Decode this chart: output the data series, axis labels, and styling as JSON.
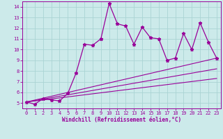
{
  "xlabel": "Windchill (Refroidissement éolien,°C)",
  "bg_color": "#cceaea",
  "grid_color": "#aad4d4",
  "line_color": "#990099",
  "xlim": [
    -0.5,
    23.5
  ],
  "ylim": [
    4.5,
    14.5
  ],
  "xticks": [
    0,
    1,
    2,
    3,
    4,
    5,
    6,
    7,
    8,
    9,
    10,
    11,
    12,
    13,
    14,
    15,
    16,
    17,
    18,
    19,
    20,
    21,
    22,
    23
  ],
  "yticks": [
    5,
    6,
    7,
    8,
    9,
    10,
    11,
    12,
    13,
    14
  ],
  "line1_x": [
    0,
    1,
    2,
    3,
    4,
    5,
    6,
    7,
    8,
    9,
    10,
    11,
    12,
    13,
    14,
    15,
    16,
    17,
    18,
    19,
    20,
    21,
    22,
    23
  ],
  "line1_y": [
    5.1,
    4.9,
    5.4,
    5.3,
    5.2,
    5.9,
    7.8,
    10.5,
    10.4,
    11.0,
    14.3,
    12.4,
    12.2,
    10.5,
    12.1,
    11.1,
    11.0,
    9.0,
    9.2,
    11.5,
    10.0,
    12.5,
    10.7,
    9.2
  ],
  "line2_x": [
    0,
    23
  ],
  "line2_y": [
    5.1,
    9.2
  ],
  "line3_x": [
    0,
    23
  ],
  "line3_y": [
    5.1,
    8.2
  ],
  "line4_x": [
    0,
    23
  ],
  "line4_y": [
    5.1,
    7.3
  ]
}
